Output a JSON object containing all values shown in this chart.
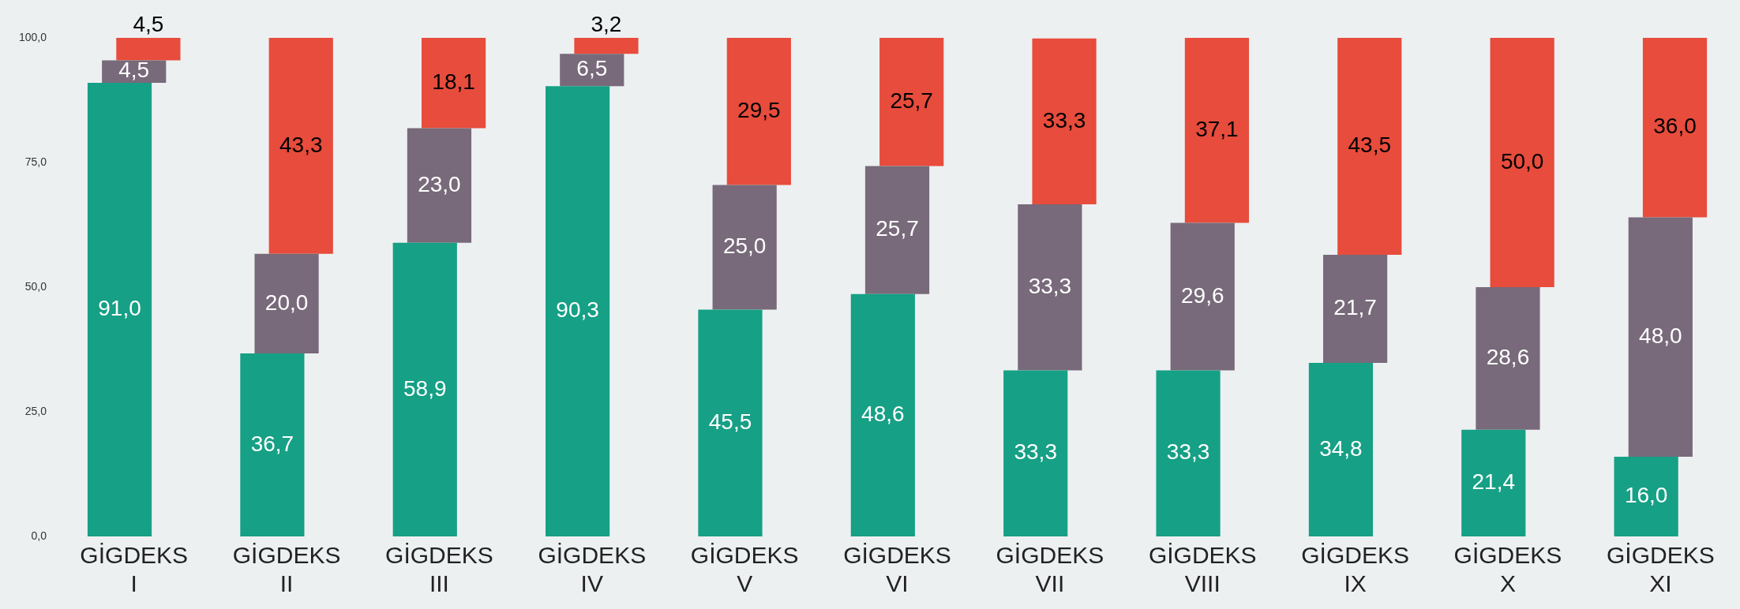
{
  "chart_data": {
    "type": "bar",
    "stacked": true,
    "legend": false,
    "grid": false,
    "categories": [
      "GİGDEKS I",
      "GİGDEKS II",
      "GİGDEKS III",
      "GİGDEKS IV",
      "GİGDEKS V",
      "GİGDEKS VI",
      "GİGDEKS VII",
      "GİGDEKS VIII",
      "GİGDEKS IX",
      "GİGDEKS X",
      "GİGDEKS XI"
    ],
    "series": [
      {
        "color": "#16a085",
        "values": [
          91.0,
          36.7,
          58.9,
          90.3,
          45.5,
          48.6,
          33.3,
          33.3,
          34.8,
          21.4,
          16.0
        ],
        "value_labels": [
          "91,0",
          "36,7",
          "58,9",
          "90,3",
          "45,5",
          "48,6",
          "33,3",
          "33,3",
          "34,8",
          "21,4",
          "16,0"
        ]
      },
      {
        "color": "#786a7a",
        "values": [
          4.5,
          20.0,
          23.0,
          6.5,
          25.0,
          25.7,
          33.3,
          29.6,
          21.7,
          28.6,
          48.0
        ],
        "value_labels": [
          "4,5",
          "20,0",
          "23,0",
          "6,5",
          "25,0",
          "25,7",
          "33,3",
          "29,6",
          "21,7",
          "28,6",
          "48,0"
        ]
      },
      {
        "color": "#e74c3c",
        "values": [
          4.5,
          43.3,
          18.1,
          3.2,
          29.5,
          25.7,
          33.3,
          37.1,
          43.5,
          50.0,
          36.0
        ],
        "value_labels": [
          "4,5",
          "43,3",
          "18,1",
          "3,2",
          "29,5",
          "25,7",
          "33,3",
          "37,1",
          "43,5",
          "50,0",
          "36,0"
        ]
      }
    ],
    "ylim": [
      0,
      100
    ],
    "yticks": [
      {
        "value": 0,
        "label": "0,0"
      },
      {
        "value": 25,
        "label": "25,0"
      },
      {
        "value": 50,
        "label": "50,0"
      },
      {
        "value": 75,
        "label": "75,0"
      },
      {
        "value": 100,
        "label": "100,0"
      }
    ]
  }
}
